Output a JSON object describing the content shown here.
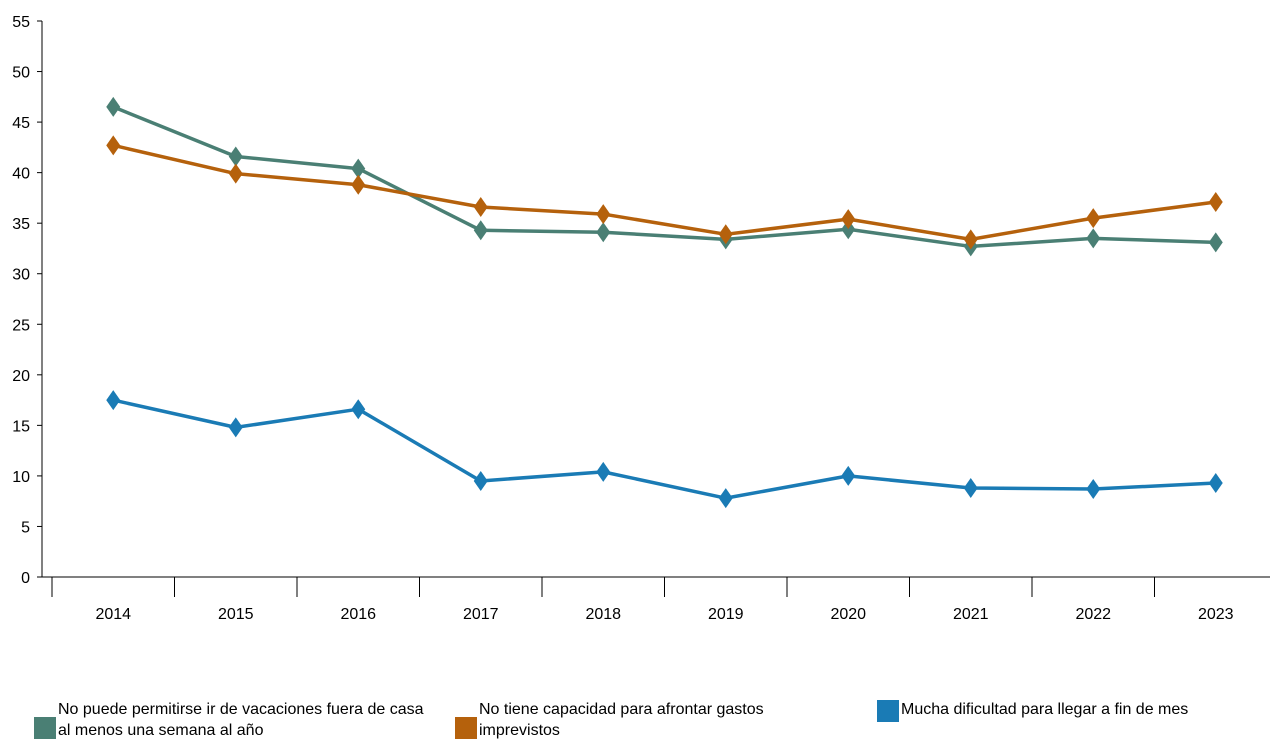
{
  "chart_data": {
    "type": "line",
    "categories": [
      "2014",
      "2015",
      "2016",
      "2017",
      "2018",
      "2019",
      "2020",
      "2021",
      "2022",
      "2023"
    ],
    "y_ticks": [
      "0",
      "5",
      "10",
      "15",
      "20",
      "25",
      "30",
      "35",
      "40",
      "45",
      "50",
      "55"
    ],
    "ylim": [
      0,
      55
    ],
    "grid": false,
    "legend_position": "bottom",
    "series": [
      {
        "name": "No puede permitirse ir de vacaciones fuera de casa al menos una semana al año",
        "color": "#4a7f74",
        "marker": "diamond",
        "values": [
          46.5,
          41.6,
          40.4,
          34.3,
          34.1,
          33.4,
          34.4,
          32.7,
          33.5,
          33.1
        ]
      },
      {
        "name": "No tiene capacidad para afrontar gastos imprevistos",
        "color": "#b5610c",
        "marker": "diamond",
        "values": [
          42.7,
          39.9,
          38.8,
          36.6,
          35.9,
          33.9,
          35.4,
          33.4,
          35.5,
          37.1
        ]
      },
      {
        "name": "Mucha dificultad para llegar a fin de mes",
        "color": "#1a7bb5",
        "marker": "diamond",
        "values": [
          17.5,
          14.8,
          16.6,
          9.5,
          10.4,
          7.8,
          10.0,
          8.8,
          8.7,
          9.3
        ]
      }
    ]
  }
}
